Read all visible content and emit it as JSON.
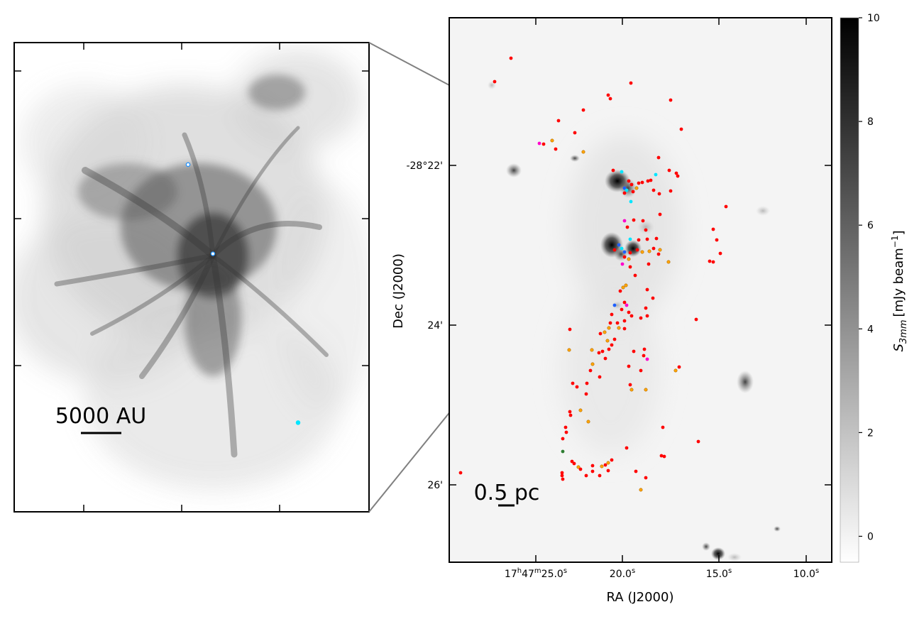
{
  "figure": {
    "inset": {
      "scalebar_label": "5000 AU",
      "sources": [
        {
          "u": 0.49,
          "v": 0.26,
          "color": "#1e90ff"
        },
        {
          "u": 0.56,
          "v": 0.45,
          "color": "#1e90ff"
        },
        {
          "u": 0.8,
          "v": 0.81,
          "color": "#00e5ff"
        }
      ]
    },
    "main_map": {
      "xlabel": "RA (J2000)",
      "ylabel": "Dec (J2000)",
      "x_ticks": [
        {
          "label": "17h47m25.0s",
          "text": "17",
          "sup1": "h",
          "mid": "47",
          "sup2": "m",
          "end": "25.0",
          "sup3": "s"
        },
        {
          "label": "20.0s",
          "text": "20.0",
          "sup": "s"
        },
        {
          "label": "15.0s",
          "text": "15.0",
          "sup": "s"
        },
        {
          "label": "10.0s",
          "text": "10.0",
          "sup": "s"
        }
      ],
      "y_ticks": [
        "-28°22'",
        "24'",
        "26'"
      ],
      "scalebar_label": "0.5 pc"
    },
    "colorbar": {
      "label_main": "S",
      "label_sub": "3mm",
      "label_unit": "[mJy beam",
      "label_sup": "−1",
      "label_close": "]",
      "ticks": [
        "10",
        "8",
        "6",
        "4",
        "2",
        "0"
      ],
      "range": [
        -0.5,
        10
      ]
    },
    "colors": {
      "red": "#ff0000",
      "orange": "#ffa500",
      "cyan": "#00e5ff",
      "blue": "#1e60ff",
      "magenta": "#ff00cc",
      "green": "#2e7d32"
    }
  }
}
